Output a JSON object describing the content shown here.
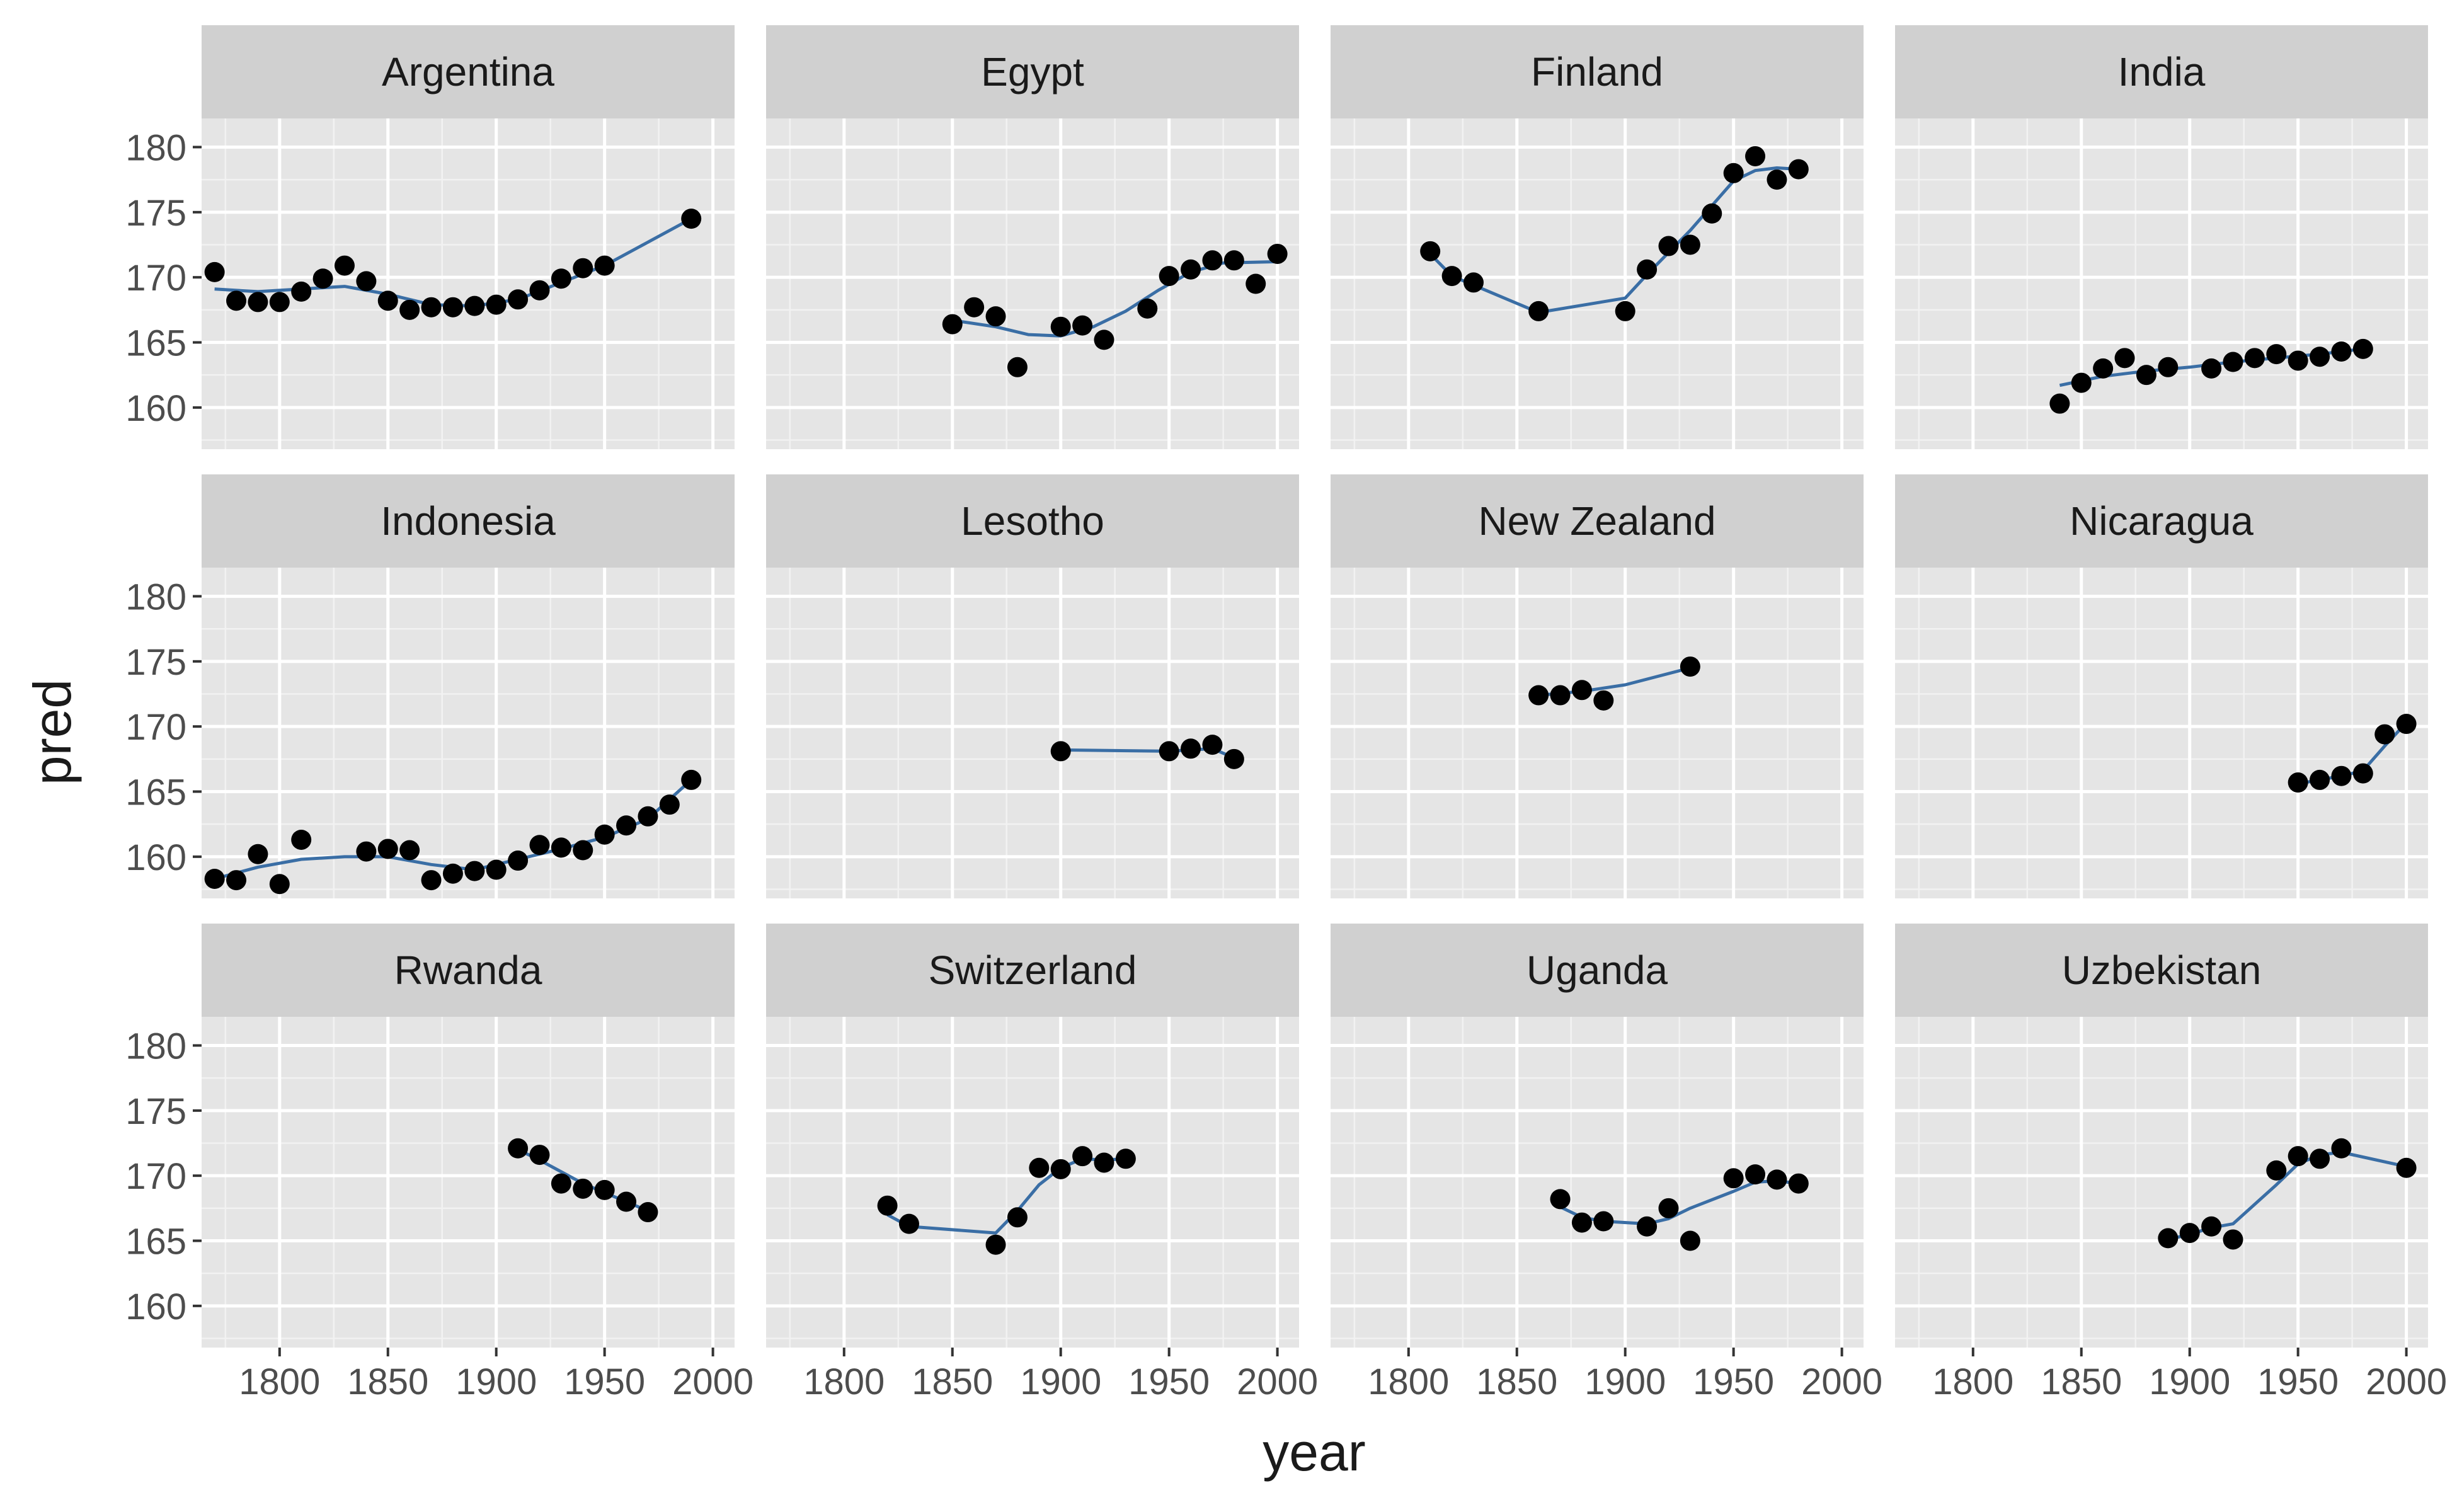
{
  "chart_data": {
    "type": "line",
    "xlabel": "year",
    "ylabel": "pred",
    "xlim": [
      1764,
      2010
    ],
    "ylim": [
      156.8,
      182.2
    ],
    "x_ticks": [
      1800,
      1850,
      1900,
      1950,
      2000
    ],
    "y_ticks": [
      160,
      165,
      170,
      175,
      180
    ],
    "point_color": "#000000",
    "line_color": "#3a6ea5",
    "panel_background": "#e5e5e5",
    "strip_background": "#d0d0d0",
    "grid": true,
    "panels": [
      {
        "name": "Argentina",
        "points": [
          [
            1770,
            170.4
          ],
          [
            1780,
            168.2
          ],
          [
            1790,
            168.1
          ],
          [
            1800,
            168.1
          ],
          [
            1810,
            168.9
          ],
          [
            1820,
            169.9
          ],
          [
            1830,
            170.9
          ],
          [
            1840,
            169.7
          ],
          [
            1850,
            168.2
          ],
          [
            1860,
            167.5
          ],
          [
            1870,
            167.7
          ],
          [
            1880,
            167.7
          ],
          [
            1890,
            167.8
          ],
          [
            1900,
            167.9
          ],
          [
            1910,
            168.3
          ],
          [
            1920,
            169.0
          ],
          [
            1930,
            169.9
          ],
          [
            1940,
            170.7
          ],
          [
            1950,
            170.9
          ],
          [
            1990,
            174.5
          ]
        ],
        "fit": [
          [
            1770,
            169.1
          ],
          [
            1790,
            168.9
          ],
          [
            1810,
            169.1
          ],
          [
            1830,
            169.3
          ],
          [
            1850,
            168.7
          ],
          [
            1870,
            167.9
          ],
          [
            1890,
            167.8
          ],
          [
            1910,
            168.3
          ],
          [
            1930,
            169.6
          ],
          [
            1950,
            170.9
          ],
          [
            1970,
            172.7
          ],
          [
            1990,
            174.5
          ]
        ]
      },
      {
        "name": "Egypt",
        "points": [
          [
            1850,
            166.4
          ],
          [
            1860,
            167.7
          ],
          [
            1870,
            167.0
          ],
          [
            1880,
            163.1
          ],
          [
            1900,
            166.2
          ],
          [
            1910,
            166.3
          ],
          [
            1920,
            165.2
          ],
          [
            1940,
            167.6
          ],
          [
            1950,
            170.1
          ],
          [
            1960,
            170.6
          ],
          [
            1970,
            171.3
          ],
          [
            1980,
            171.3
          ],
          [
            1990,
            169.5
          ],
          [
            2000,
            171.8
          ]
        ],
        "fit": [
          [
            1850,
            166.7
          ],
          [
            1870,
            166.2
          ],
          [
            1885,
            165.6
          ],
          [
            1900,
            165.5
          ],
          [
            1915,
            166.2
          ],
          [
            1930,
            167.4
          ],
          [
            1945,
            169.0
          ],
          [
            1960,
            170.4
          ],
          [
            1975,
            171.1
          ],
          [
            2000,
            171.2
          ]
        ]
      },
      {
        "name": "Finland",
        "points": [
          [
            1810,
            172.0
          ],
          [
            1820,
            170.1
          ],
          [
            1830,
            169.6
          ],
          [
            1860,
            167.4
          ],
          [
            1900,
            167.4
          ],
          [
            1910,
            170.6
          ],
          [
            1920,
            172.4
          ],
          [
            1930,
            172.5
          ],
          [
            1940,
            174.9
          ],
          [
            1950,
            178.0
          ],
          [
            1960,
            179.3
          ],
          [
            1970,
            177.5
          ],
          [
            1980,
            178.3
          ]
        ],
        "fit": [
          [
            1810,
            171.8
          ],
          [
            1820,
            170.1
          ],
          [
            1830,
            169.4
          ],
          [
            1860,
            167.3
          ],
          [
            1900,
            168.4
          ],
          [
            1910,
            170.2
          ],
          [
            1920,
            171.9
          ],
          [
            1930,
            173.6
          ],
          [
            1940,
            175.5
          ],
          [
            1950,
            177.4
          ],
          [
            1960,
            178.2
          ],
          [
            1970,
            178.4
          ],
          [
            1980,
            178.3
          ]
        ]
      },
      {
        "name": "India",
        "points": [
          [
            1840,
            160.3
          ],
          [
            1850,
            161.9
          ],
          [
            1860,
            163.0
          ],
          [
            1870,
            163.8
          ],
          [
            1880,
            162.5
          ],
          [
            1890,
            163.1
          ],
          [
            1910,
            163.0
          ],
          [
            1920,
            163.5
          ],
          [
            1930,
            163.8
          ],
          [
            1940,
            164.1
          ],
          [
            1950,
            163.6
          ],
          [
            1960,
            163.9
          ],
          [
            1970,
            164.3
          ],
          [
            1980,
            164.5
          ]
        ],
        "fit": [
          [
            1840,
            161.7
          ],
          [
            1860,
            162.4
          ],
          [
            1880,
            162.8
          ],
          [
            1900,
            163.1
          ],
          [
            1920,
            163.5
          ],
          [
            1940,
            163.8
          ],
          [
            1960,
            164.1
          ],
          [
            1980,
            164.5
          ]
        ]
      },
      {
        "name": "Indonesia",
        "points": [
          [
            1770,
            158.3
          ],
          [
            1780,
            158.2
          ],
          [
            1790,
            160.2
          ],
          [
            1800,
            157.9
          ],
          [
            1810,
            161.3
          ],
          [
            1840,
            160.4
          ],
          [
            1850,
            160.6
          ],
          [
            1860,
            160.5
          ],
          [
            1870,
            158.2
          ],
          [
            1880,
            158.7
          ],
          [
            1890,
            158.9
          ],
          [
            1900,
            159.0
          ],
          [
            1910,
            159.7
          ],
          [
            1920,
            160.9
          ],
          [
            1930,
            160.7
          ],
          [
            1940,
            160.5
          ],
          [
            1950,
            161.7
          ],
          [
            1960,
            162.4
          ],
          [
            1970,
            163.1
          ],
          [
            1980,
            164.0
          ],
          [
            1990,
            165.9
          ]
        ],
        "fit": [
          [
            1770,
            158.3
          ],
          [
            1790,
            159.2
          ],
          [
            1810,
            159.8
          ],
          [
            1830,
            160.0
          ],
          [
            1850,
            160.0
          ],
          [
            1870,
            159.4
          ],
          [
            1890,
            159.0
          ],
          [
            1910,
            159.8
          ],
          [
            1930,
            160.6
          ],
          [
            1950,
            161.5
          ],
          [
            1970,
            162.9
          ],
          [
            1990,
            165.9
          ]
        ]
      },
      {
        "name": "Lesotho",
        "points": [
          [
            1900,
            168.1
          ],
          [
            1950,
            168.1
          ],
          [
            1960,
            168.3
          ],
          [
            1970,
            168.6
          ],
          [
            1980,
            167.5
          ]
        ],
        "fit": [
          [
            1900,
            168.2
          ],
          [
            1950,
            168.1
          ],
          [
            1960,
            168.2
          ],
          [
            1970,
            168.3
          ],
          [
            1980,
            167.6
          ]
        ]
      },
      {
        "name": "New Zealand",
        "points": [
          [
            1860,
            172.4
          ],
          [
            1870,
            172.4
          ],
          [
            1880,
            172.8
          ],
          [
            1890,
            172.0
          ],
          [
            1930,
            174.6
          ]
        ],
        "fit": [
          [
            1860,
            172.4
          ],
          [
            1880,
            172.7
          ],
          [
            1900,
            173.2
          ],
          [
            1930,
            174.5
          ]
        ]
      },
      {
        "name": "Nicaragua",
        "points": [
          [
            1950,
            165.7
          ],
          [
            1960,
            165.9
          ],
          [
            1970,
            166.2
          ],
          [
            1980,
            166.4
          ],
          [
            1990,
            169.4
          ],
          [
            2000,
            170.2
          ]
        ],
        "fit": [
          [
            1950,
            165.6
          ],
          [
            1960,
            165.9
          ],
          [
            1970,
            166.2
          ],
          [
            1980,
            166.6
          ],
          [
            1990,
            168.5
          ],
          [
            2000,
            170.3
          ]
        ]
      },
      {
        "name": "Rwanda",
        "points": [
          [
            1910,
            172.1
          ],
          [
            1920,
            171.6
          ],
          [
            1930,
            169.4
          ],
          [
            1940,
            169.0
          ],
          [
            1950,
            168.9
          ],
          [
            1960,
            168.0
          ],
          [
            1970,
            167.2
          ]
        ],
        "fit": [
          [
            1910,
            172.0
          ],
          [
            1920,
            171.2
          ],
          [
            1930,
            170.3
          ],
          [
            1940,
            169.4
          ],
          [
            1950,
            168.7
          ],
          [
            1960,
            168.0
          ],
          [
            1970,
            167.3
          ]
        ]
      },
      {
        "name": "Switzerland",
        "points": [
          [
            1820,
            167.7
          ],
          [
            1830,
            166.3
          ],
          [
            1870,
            164.7
          ],
          [
            1880,
            166.8
          ],
          [
            1890,
            170.6
          ],
          [
            1900,
            170.5
          ],
          [
            1910,
            171.5
          ],
          [
            1920,
            171.0
          ],
          [
            1930,
            171.3
          ]
        ],
        "fit": [
          [
            1820,
            167.0
          ],
          [
            1830,
            166.1
          ],
          [
            1870,
            165.6
          ],
          [
            1880,
            167.3
          ],
          [
            1890,
            169.3
          ],
          [
            1900,
            170.6
          ],
          [
            1910,
            171.3
          ],
          [
            1920,
            171.2
          ],
          [
            1930,
            171.3
          ]
        ]
      },
      {
        "name": "Uganda",
        "points": [
          [
            1870,
            168.2
          ],
          [
            1880,
            166.4
          ],
          [
            1890,
            166.5
          ],
          [
            1910,
            166.1
          ],
          [
            1920,
            167.5
          ],
          [
            1930,
            165.0
          ],
          [
            1950,
            169.8
          ],
          [
            1960,
            170.1
          ],
          [
            1970,
            169.7
          ],
          [
            1980,
            169.4
          ]
        ],
        "fit": [
          [
            1870,
            167.6
          ],
          [
            1880,
            166.8
          ],
          [
            1890,
            166.5
          ],
          [
            1910,
            166.3
          ],
          [
            1920,
            166.7
          ],
          [
            1930,
            167.5
          ],
          [
            1950,
            168.8
          ],
          [
            1960,
            169.5
          ],
          [
            1970,
            169.6
          ],
          [
            1980,
            169.4
          ]
        ]
      },
      {
        "name": "Uzbekistan",
        "points": [
          [
            1890,
            165.2
          ],
          [
            1900,
            165.6
          ],
          [
            1910,
            166.1
          ],
          [
            1920,
            165.1
          ],
          [
            1940,
            170.4
          ],
          [
            1950,
            171.5
          ],
          [
            1960,
            171.3
          ],
          [
            1970,
            172.1
          ],
          [
            2000,
            170.6
          ]
        ],
        "fit": [
          [
            1890,
            165.1
          ],
          [
            1900,
            165.5
          ],
          [
            1910,
            166.0
          ],
          [
            1920,
            166.3
          ],
          [
            1940,
            169.3
          ],
          [
            1950,
            170.9
          ],
          [
            1960,
            171.6
          ],
          [
            1970,
            171.8
          ],
          [
            2000,
            170.7
          ]
        ]
      }
    ]
  }
}
